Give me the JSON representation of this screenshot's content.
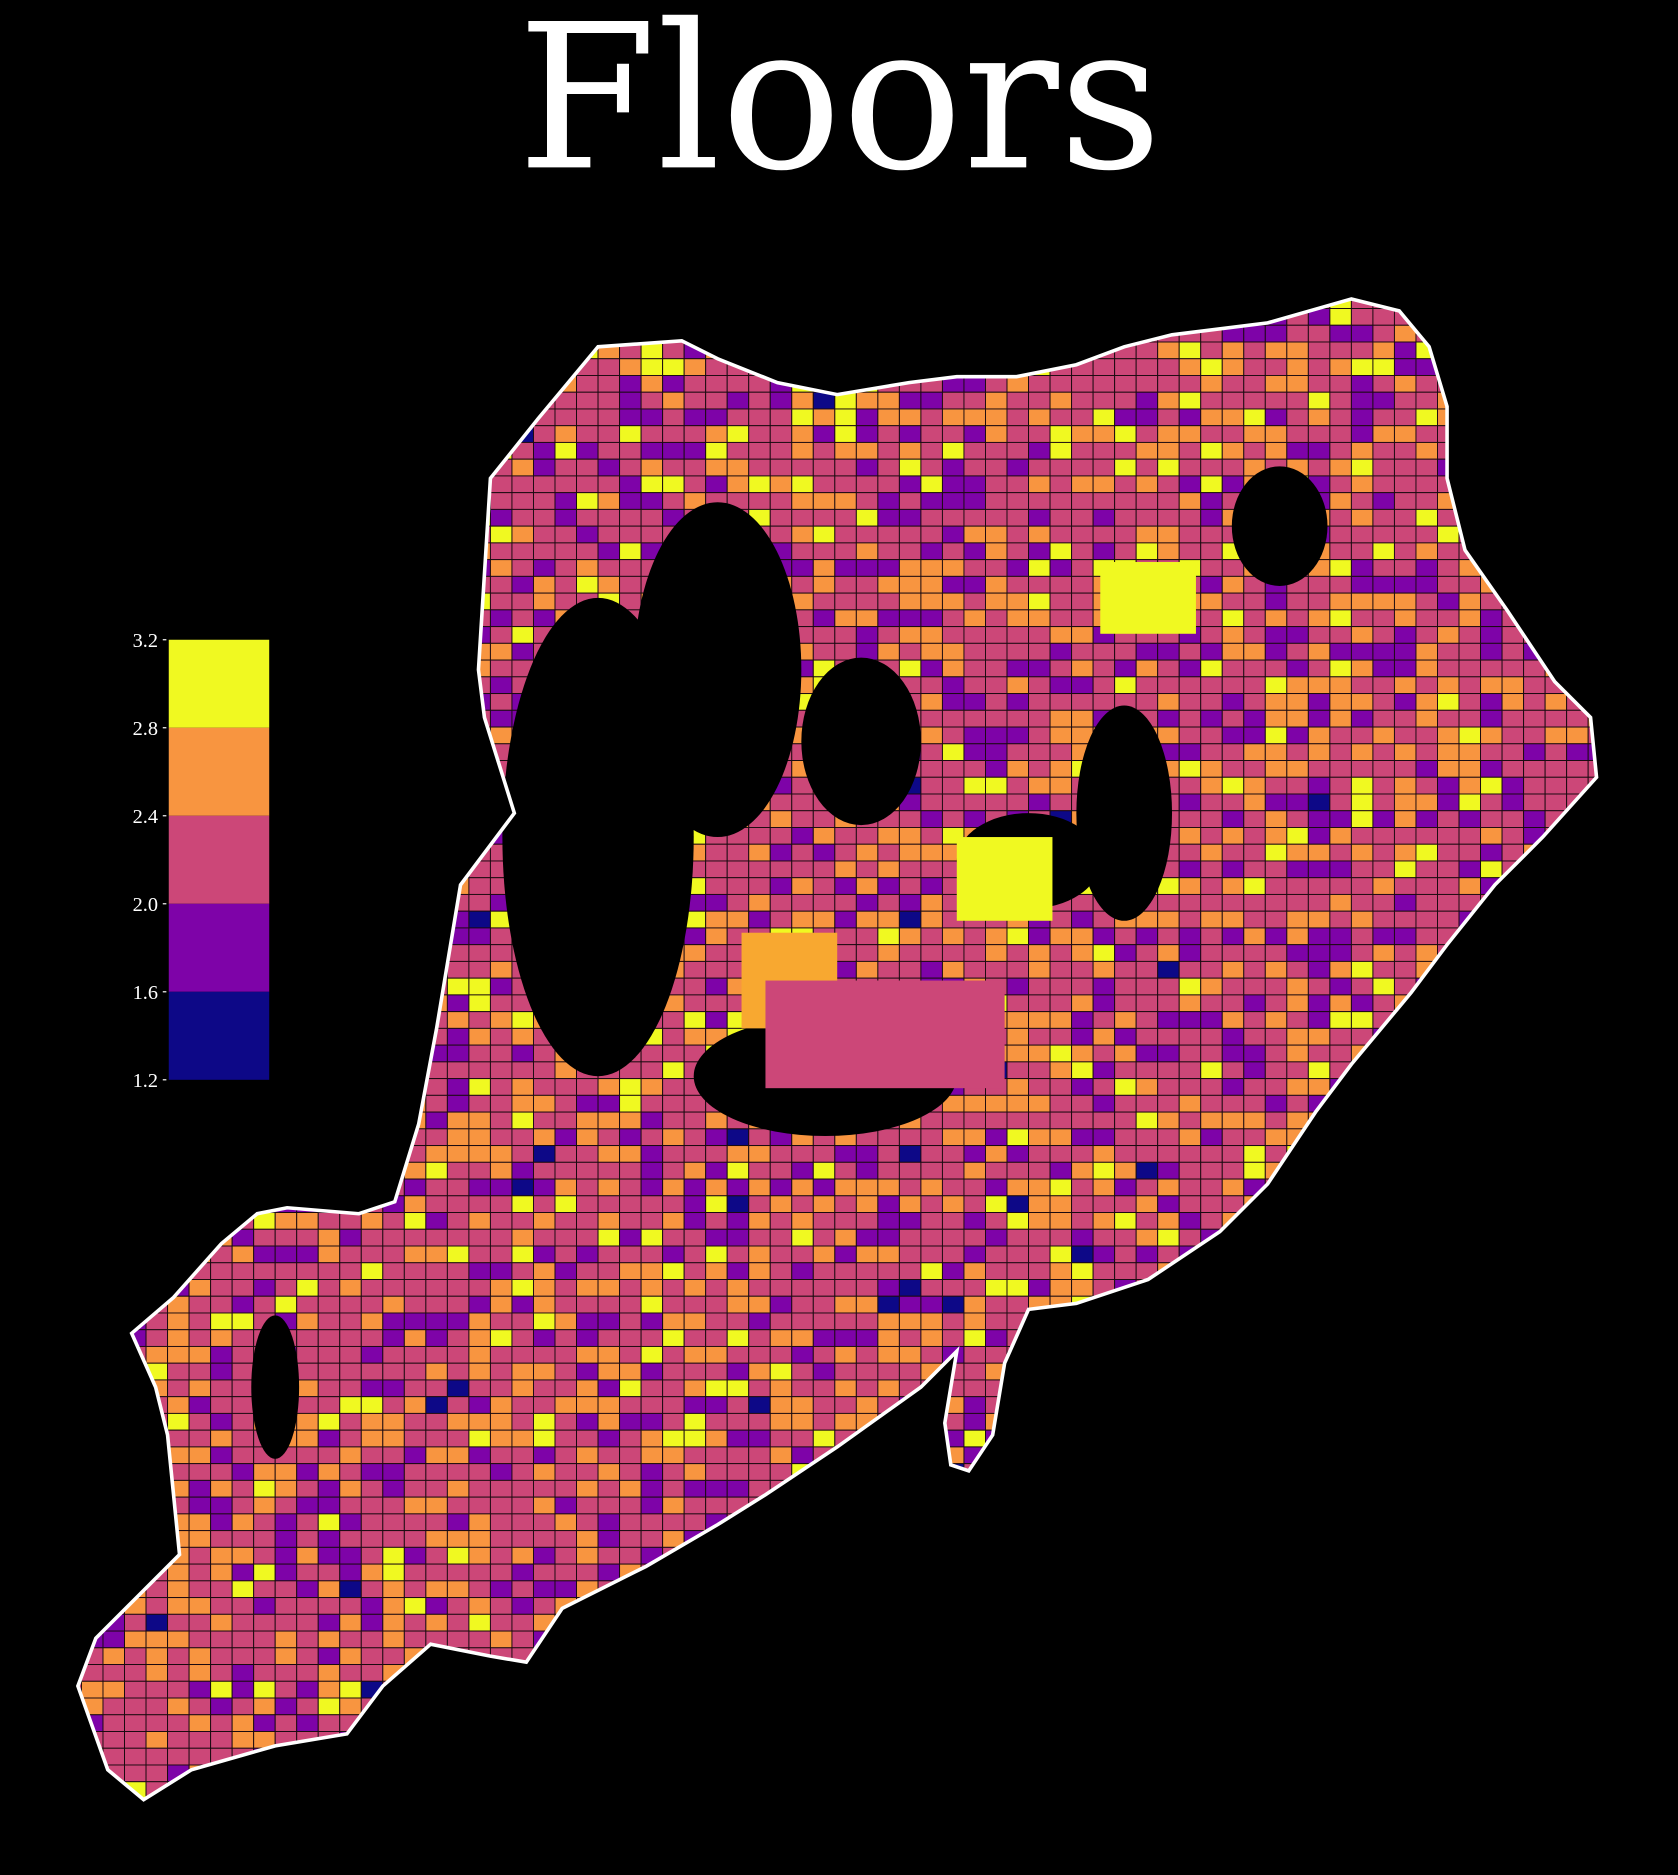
{
  "title": "Floors",
  "chart_data": {
    "type": "choropleth",
    "title": "Floors",
    "colormap": "plasma",
    "legend": {
      "placement": "left",
      "ticks": [
        "3.2",
        "2.8",
        "2.4",
        "2.0",
        "1.6",
        "1.2"
      ],
      "range": [
        1.2,
        3.2
      ],
      "bins": [
        {
          "min": 2.8,
          "max": 3.2,
          "color": "#f0f921"
        },
        {
          "min": 2.4,
          "max": 2.8,
          "color": "#f89540"
        },
        {
          "min": 2.0,
          "max": 2.4,
          "color": "#cc4778"
        },
        {
          "min": 1.6,
          "max": 2.0,
          "color": "#7e03a8"
        },
        {
          "min": 1.2,
          "max": 1.6,
          "color": "#0d0887"
        }
      ]
    },
    "background": "#000000",
    "outline_color": "#ffffff"
  }
}
